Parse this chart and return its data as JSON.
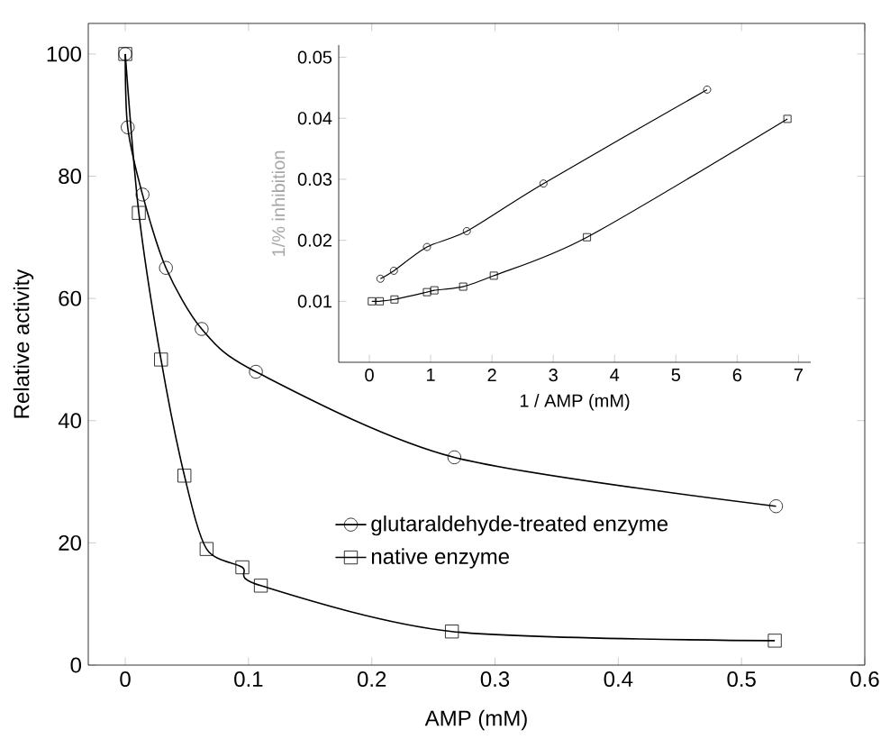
{
  "chart_data": [
    {
      "type": "line",
      "xlabel": "AMP (mM)",
      "ylabel": "Relative activity",
      "xlim": [
        -0.03,
        0.6
      ],
      "ylim": [
        0,
        105
      ],
      "xticks": [
        0,
        0.1,
        0.2,
        0.3,
        0.4,
        0.5,
        0.6
      ],
      "yticks": [
        0,
        20,
        40,
        60,
        80,
        100
      ],
      "legend": "bottom right",
      "series": [
        {
          "name": "glutaraldehyde-treated enzyme",
          "color": "#000000",
          "marker": "circle",
          "x": [
            0,
            0.002,
            0.014,
            0.033,
            0.062,
            0.106,
            0.267,
            0.528
          ],
          "values": [
            100,
            88,
            77,
            65,
            55,
            48,
            34,
            26
          ]
        },
        {
          "name": "native enzyme",
          "color": "#000000",
          "marker": "square",
          "x": [
            0,
            0.011,
            0.029,
            0.048,
            0.066,
            0.095,
            0.11,
            0.265,
            0.527
          ],
          "values": [
            100,
            74,
            50,
            31,
            19,
            16,
            13,
            5.5,
            4
          ]
        }
      ]
    },
    {
      "type": "line",
      "xlabel": "1 / AMP (mM)",
      "ylabel": "1/% inhibition",
      "xlim": [
        -0.5,
        7.2
      ],
      "ylim": [
        0,
        0.052
      ],
      "xticks": [
        0,
        1,
        2,
        3,
        4,
        5,
        6,
        7
      ],
      "yticks": [
        0.01,
        0.02,
        0.03,
        0.04,
        0.05
      ],
      "series": [
        {
          "color": "#000000",
          "marker": "circle",
          "x": [
            0.18,
            0.4,
            0.94,
            1.59,
            2.84,
            5.51
          ],
          "values": [
            0.0137,
            0.015,
            0.0189,
            0.0215,
            0.0293,
            0.0447
          ]
        },
        {
          "color": "#000000",
          "marker": "square",
          "x": [
            0.04,
            0.17,
            0.41,
            0.94,
            1.06,
            1.53,
            2.03,
            3.55,
            6.82
          ],
          "values": [
            0.01,
            0.01,
            0.0103,
            0.0115,
            0.0118,
            0.0124,
            0.0142,
            0.0205,
            0.0399
          ]
        }
      ]
    }
  ]
}
